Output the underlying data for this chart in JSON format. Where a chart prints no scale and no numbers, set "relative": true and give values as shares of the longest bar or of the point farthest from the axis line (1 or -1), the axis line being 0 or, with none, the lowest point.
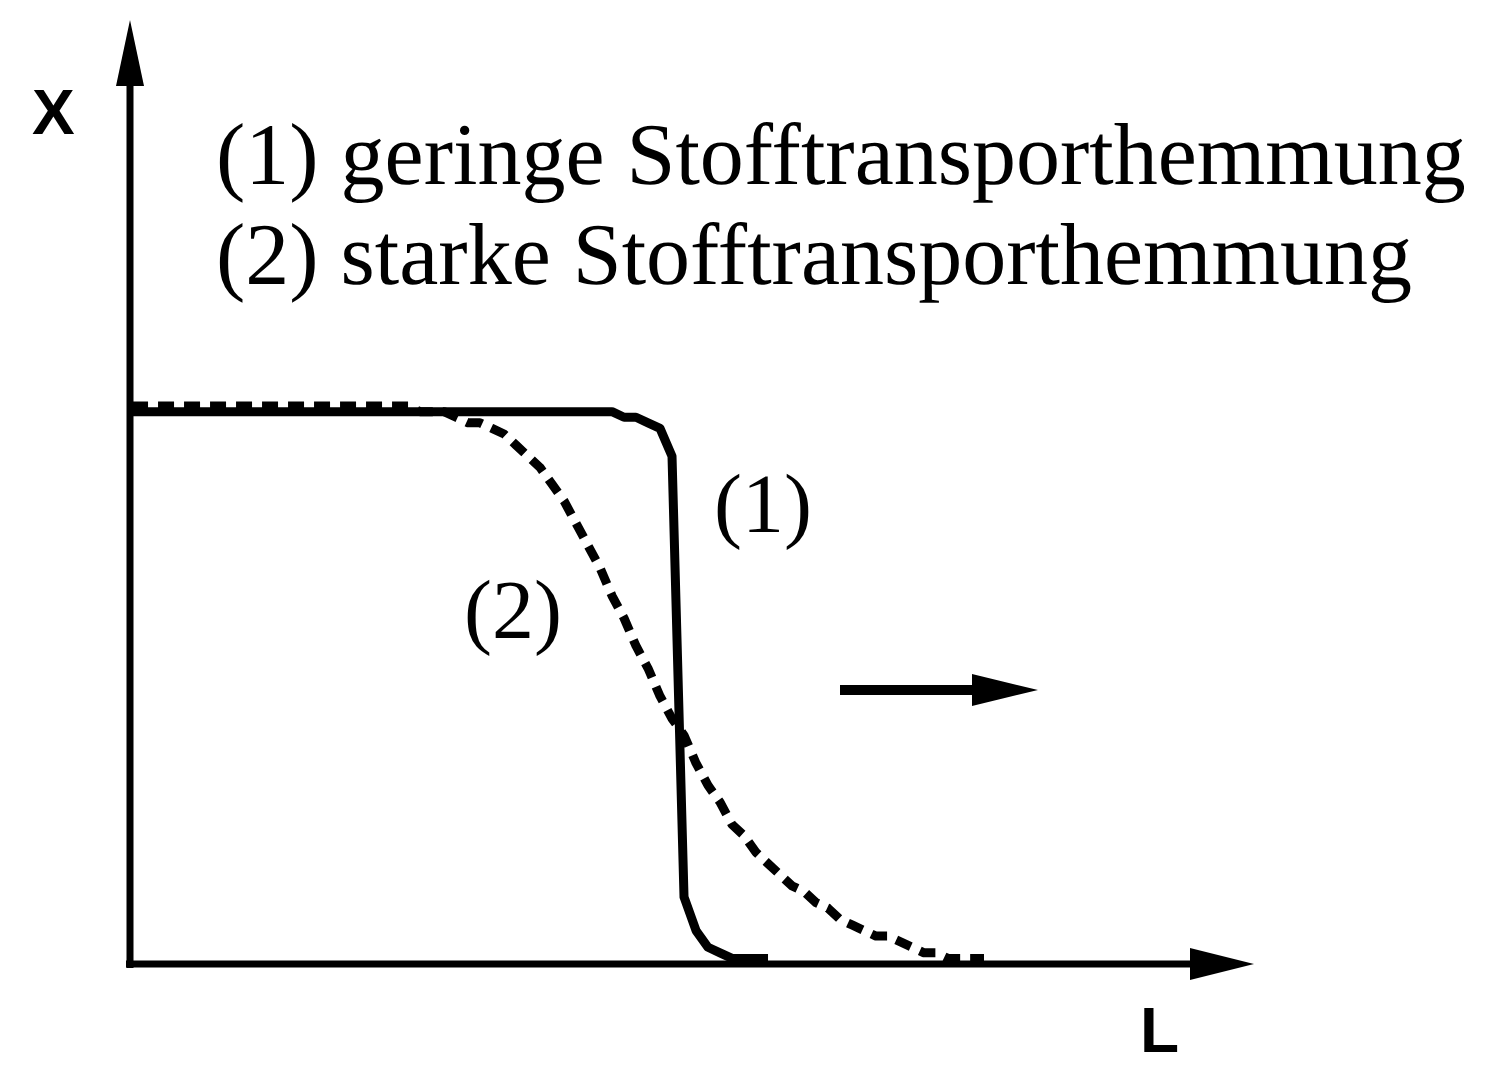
{
  "chart_data": {
    "type": "line",
    "relative": true,
    "xlabel": "L",
    "ylabel": "X",
    "annotations": [
      "(1) geringe Stofftransporthemmung",
      "(2) starke Stofftransporthemmung"
    ],
    "categories": [
      null,
      null,
      null,
      null,
      null,
      null,
      null,
      null,
      null,
      null,
      null,
      null,
      null,
      null,
      null,
      null,
      null,
      null,
      null,
      null,
      null,
      null,
      null,
      null,
      null,
      null,
      null,
      null,
      null,
      null,
      null,
      null,
      null,
      null,
      null,
      null,
      null,
      null,
      null,
      null,
      null,
      null,
      null,
      null,
      null,
      null,
      null,
      null,
      null,
      null,
      null,
      null,
      null,
      null,
      null,
      null,
      null,
      null,
      null,
      null,
      null,
      null,
      null,
      null,
      null,
      null,
      null,
      null,
      null,
      null,
      null,
      null
    ],
    "series": [
      {
        "name": "(1)",
        "color": "#000000",
        "line_style": "solid",
        "values": [
          0.99,
          0.99,
          0.99,
          0.99,
          0.99,
          0.99,
          0.99,
          0.99,
          0.99,
          0.99,
          0.99,
          0.99,
          0.99,
          0.99,
          0.99,
          0.99,
          0.99,
          0.99,
          0.99,
          0.99,
          0.99,
          0.99,
          0.99,
          0.99,
          0.99,
          0.99,
          0.99,
          0.99,
          0.99,
          0.99,
          0.99,
          0.99,
          0.99,
          0.99,
          0.99,
          0.99,
          0.99,
          0.99,
          0.99,
          0.99,
          0.99,
          0.98,
          0.98,
          0.97,
          0.96,
          0.91,
          0.12,
          0.06,
          0.03,
          0.02,
          0.01,
          0.01,
          0.01,
          0.01,
          null,
          null,
          null,
          null,
          null,
          null,
          null,
          null,
          null,
          null,
          null,
          null,
          null,
          null,
          null,
          null,
          null,
          null
        ]
      },
      {
        "name": "(2)",
        "color": "#000000",
        "line_style": "dashed",
        "values": [
          1,
          1,
          1,
          1,
          1,
          1,
          1,
          1,
          1,
          1,
          1,
          1,
          1,
          1,
          1,
          1,
          1,
          1,
          1,
          1,
          1,
          1,
          1,
          1,
          0.99,
          0.99,
          0.99,
          0.98,
          0.97,
          0.97,
          0.96,
          0.95,
          0.93,
          0.91,
          0.89,
          0.86,
          0.83,
          0.79,
          0.75,
          0.71,
          0.66,
          0.62,
          0.57,
          0.53,
          0.48,
          0.44,
          0.41,
          0.36,
          0.32,
          0.29,
          0.25,
          0.23,
          0.2,
          0.18,
          0.16,
          0.14,
          0.13,
          0.11,
          0.1,
          0.08,
          0.07,
          0.06,
          0.05,
          0.05,
          0.04,
          0.03,
          0.02,
          0.02,
          0.01,
          0.01,
          0.01,
          0.01
        ]
      }
    ]
  }
}
